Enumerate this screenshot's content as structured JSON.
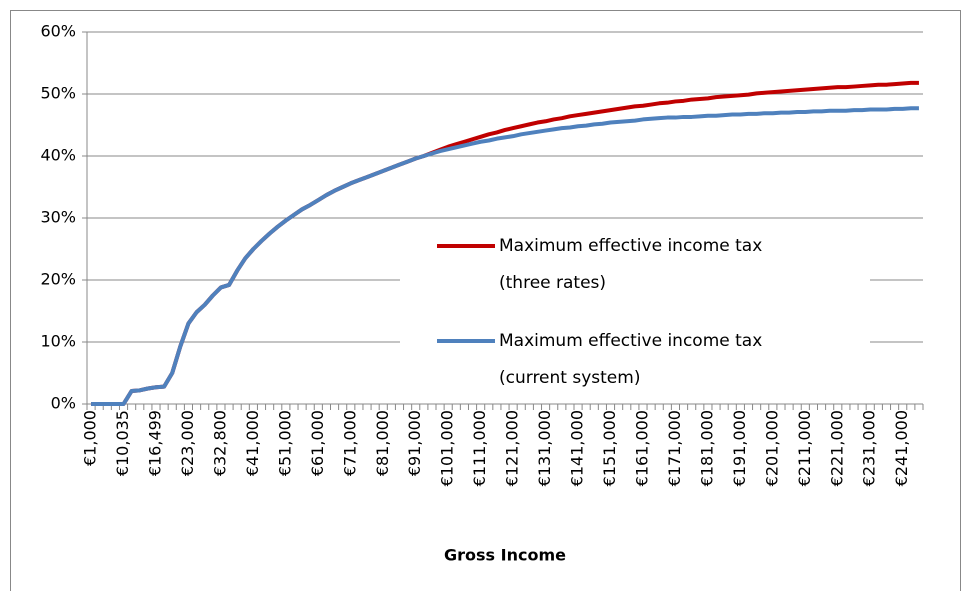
{
  "chart_data": {
    "type": "line",
    "x_label": "Gross Income",
    "categories": [
      "€1,000",
      null,
      null,
      null,
      "€10,035",
      null,
      null,
      null,
      "€16,499",
      null,
      null,
      null,
      "€23,000",
      null,
      null,
      null,
      "€32,800",
      null,
      null,
      null,
      "€41,000",
      null,
      null,
      null,
      "€51,000",
      null,
      null,
      null,
      "€61,000",
      null,
      null,
      null,
      "€71,000",
      null,
      null,
      null,
      "€81,000",
      null,
      null,
      null,
      "€91,000",
      null,
      null,
      null,
      "€101,000",
      null,
      null,
      null,
      "€111,000",
      null,
      null,
      null,
      "€121,000",
      null,
      null,
      null,
      "€131,000",
      null,
      null,
      null,
      "€141,000",
      null,
      null,
      null,
      "€151,000",
      null,
      null,
      null,
      "€161,000",
      null,
      null,
      null,
      "€171,000",
      null,
      null,
      null,
      "€181,000",
      null,
      null,
      null,
      "€191,000",
      null,
      null,
      null,
      "€201,000",
      null,
      null,
      null,
      "€211,000",
      null,
      null,
      null,
      "€221,000",
      null,
      null,
      null,
      "€231,000",
      null,
      null,
      null,
      "€241,000",
      null,
      null
    ],
    "series": [
      {
        "name": "Maximum effective income tax (three rates)",
        "color": "#c00000",
        "values": [
          0,
          0,
          0,
          0,
          0,
          2.1,
          2.2,
          2.5,
          2.7,
          2.8,
          5.0,
          9.3,
          13.0,
          14.8,
          16.0,
          17.5,
          18.8,
          19.2,
          21.5,
          23.5,
          25.0,
          26.3,
          27.5,
          28.6,
          29.6,
          30.5,
          31.4,
          32.1,
          32.9,
          33.7,
          34.4,
          35.0,
          35.6,
          36.1,
          36.6,
          37.1,
          37.6,
          38.1,
          38.6,
          39.1,
          39.6,
          40.0,
          40.5,
          41.0,
          41.5,
          41.9,
          42.3,
          42.7,
          43.1,
          43.5,
          43.8,
          44.2,
          44.5,
          44.8,
          45.1,
          45.4,
          45.6,
          45.9,
          46.1,
          46.4,
          46.6,
          46.8,
          47.0,
          47.2,
          47.4,
          47.6,
          47.8,
          48.0,
          48.1,
          48.3,
          48.5,
          48.6,
          48.8,
          48.9,
          49.1,
          49.2,
          49.3,
          49.5,
          49.6,
          49.7,
          49.8,
          49.9,
          50.1,
          50.2,
          50.3,
          50.4,
          50.5,
          50.6,
          50.7,
          50.8,
          50.9,
          51.0,
          51.1,
          51.1,
          51.2,
          51.3,
          51.4,
          51.5,
          51.5,
          51.6,
          51.7,
          51.8,
          51.8
        ]
      },
      {
        "name": "Maximum effective income tax (current system)",
        "color": "#4f81bd",
        "values": [
          0,
          0,
          0,
          0,
          0,
          2.1,
          2.2,
          2.5,
          2.7,
          2.8,
          5.0,
          9.3,
          13.0,
          14.8,
          16.0,
          17.5,
          18.8,
          19.2,
          21.5,
          23.5,
          25.0,
          26.3,
          27.5,
          28.6,
          29.6,
          30.5,
          31.4,
          32.1,
          32.9,
          33.7,
          34.4,
          35.0,
          35.6,
          36.1,
          36.6,
          37.1,
          37.6,
          38.1,
          38.6,
          39.1,
          39.6,
          40.0,
          40.4,
          40.8,
          41.1,
          41.4,
          41.7,
          42.0,
          42.3,
          42.5,
          42.8,
          43.0,
          43.2,
          43.5,
          43.7,
          43.9,
          44.1,
          44.3,
          44.5,
          44.6,
          44.8,
          44.9,
          45.1,
          45.2,
          45.4,
          45.5,
          45.6,
          45.7,
          45.9,
          46.0,
          46.1,
          46.2,
          46.2,
          46.3,
          46.3,
          46.4,
          46.5,
          46.5,
          46.6,
          46.7,
          46.7,
          46.8,
          46.8,
          46.9,
          46.9,
          47.0,
          47.0,
          47.1,
          47.1,
          47.2,
          47.2,
          47.3,
          47.3,
          47.3,
          47.4,
          47.4,
          47.5,
          47.5,
          47.5,
          47.6,
          47.6,
          47.7,
          47.7
        ]
      }
    ],
    "ylim": [
      0,
      60
    ],
    "yticks": [
      {
        "value": 0,
        "label": "0%"
      },
      {
        "value": 10,
        "label": "10%"
      },
      {
        "value": 20,
        "label": "20%"
      },
      {
        "value": 30,
        "label": "30%"
      },
      {
        "value": 40,
        "label": "40%"
      },
      {
        "value": 50,
        "label": "50%"
      },
      {
        "value": 60,
        "label": "60%"
      }
    ],
    "grid": true
  }
}
